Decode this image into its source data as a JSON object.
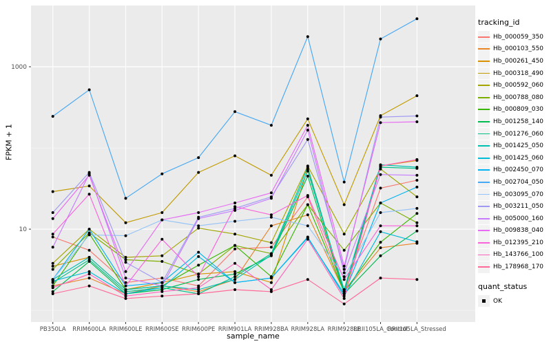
{
  "figure": {
    "background": "#FFFFFF",
    "panel_bg": "#EBEBEB",
    "grid_major_color": "#FFFFFF",
    "grid_minor_color": "#FFFFFF",
    "axis_text_color": "#4D4D4D",
    "axis_title_color": "#000000",
    "tick_mark_color": "#333333",
    "point_color": "#000000"
  },
  "chart_data": {
    "type": "line",
    "title": "",
    "xlabel": "sample_name",
    "ylabel": "FPKM + 1",
    "y_scale": "log10",
    "ylim_log": [
      -0.1432,
      3.7542
    ],
    "grid": true,
    "legend_position": "right",
    "legend_title": "tracking_id",
    "x_categories": [
      "PB350LA",
      "RRIM600LA",
      "RRIM600LE",
      "RRIM600SE",
      "RRIM600PE",
      "RRIM901LA",
      "RRIM928BA",
      "RRIM928LA",
      "RRIM928LE",
      "RRII105LA_Control",
      "RRII105LA_Stressed"
    ],
    "y_ticks": [
      {
        "label": "1000",
        "value": 1000
      },
      {
        "label": "10",
        "value": 10
      }
    ],
    "y_minor_gridlines": [
      100,
      1
    ],
    "series": [
      {
        "name": "Hb_000059_350",
        "color": "#F8766D",
        "values": [
          8.0,
          5.5,
          2.2,
          2.5,
          2.0,
          5.7,
          6.0,
          25,
          1.8,
          32,
          40
        ]
      },
      {
        "name": "Hb_000103_550",
        "color": "#E88526",
        "values": [
          2.0,
          2.5,
          1.6,
          2.0,
          1.7,
          2.4,
          11,
          15,
          1.7,
          5.9,
          6.7
        ]
      },
      {
        "name": "Hb_000261_450",
        "color": "#D89000",
        "values": [
          3.5,
          4.5,
          1.8,
          2.2,
          2.8,
          3.0,
          2.2,
          55,
          1.6,
          60,
          70
        ]
      },
      {
        "name": "Hb_000318_490",
        "color": "#C09B00",
        "values": [
          29,
          34,
          12,
          16,
          50,
          80,
          46,
          228,
          20,
          250,
          440
        ]
      },
      {
        "name": "Hb_000592_060",
        "color": "#A3A500",
        "values": [
          3.8,
          10,
          4.5,
          4.7,
          10.3,
          8.7,
          6.8,
          60,
          8.7,
          55,
          25
        ]
      },
      {
        "name": "Hb_000788_080",
        "color": "#7CAE00",
        "values": [
          3.2,
          9.0,
          4.2,
          4.0,
          2.8,
          6.3,
          5.0,
          20,
          5.5,
          21,
          12
        ]
      },
      {
        "name": "Hb_000809_030",
        "color": "#39B600",
        "values": [
          2.0,
          8.8,
          1.8,
          2.0,
          3.6,
          6.3,
          2.6,
          20,
          1.7,
          6.9,
          15.6
        ]
      },
      {
        "name": "Hb_001258_140",
        "color": "#00BB4E",
        "values": [
          1.7,
          4.0,
          1.6,
          1.8,
          2.4,
          2.8,
          4.7,
          45,
          1.6,
          4.7,
          9.5
        ]
      },
      {
        "name": "Hb_001276_060",
        "color": "#00C087",
        "values": [
          2.2,
          4.2,
          1.7,
          1.9,
          1.6,
          2.6,
          5.0,
          58,
          1.7,
          58,
          56
        ]
      },
      {
        "name": "Hb_001425_050",
        "color": "#00C0B2",
        "values": [
          2.4,
          4.5,
          1.8,
          2.0,
          1.8,
          2.4,
          4.8,
          52,
          1.8,
          62,
          58
        ]
      },
      {
        "name": "Hb_001425_060",
        "color": "#00BCD8",
        "values": [
          2.3,
          3.0,
          1.6,
          1.9,
          4.6,
          2.2,
          2.5,
          8.0,
          1.5,
          9.3,
          7.0
        ]
      },
      {
        "name": "Hb_002450_070",
        "color": "#00B3F2",
        "values": [
          2.4,
          10,
          2.0,
          2.2,
          5.2,
          2.2,
          2.5,
          7.8,
          1.6,
          21,
          33
        ]
      },
      {
        "name": "Hb_002704_050",
        "color": "#47A8F3",
        "values": [
          245,
          520,
          24,
          48,
          76,
          280,
          190,
          2350,
          38,
          2200,
          3900
        ]
      },
      {
        "name": "Hb_003095_070",
        "color": "#93C3F7",
        "values": [
          2.4,
          8.5,
          8.3,
          13,
          11,
          12.5,
          14,
          11,
          2.6,
          16,
          18
        ]
      },
      {
        "name": "Hb_003211_050",
        "color": "#9F99F3",
        "values": [
          16,
          50,
          3.9,
          2.2,
          14,
          18,
          25,
          127,
          3.2,
          240,
          248
        ]
      },
      {
        "name": "Hb_005000_160",
        "color": "#C77CFF",
        "values": [
          6.0,
          48,
          2.5,
          2.0,
          13.5,
          17,
          24,
          166,
          2.9,
          47,
          46
        ]
      },
      {
        "name": "Hb_009838_040",
        "color": "#E76BF3",
        "values": [
          13.5,
          46,
          3.0,
          13,
          16,
          21,
          28,
          190,
          3.5,
          205,
          210
        ]
      },
      {
        "name": "Hb_012395_210",
        "color": "#FA62DB",
        "values": [
          8.7,
          27,
          2.0,
          7.5,
          2.6,
          19,
          15,
          26,
          2.4,
          11,
          11
        ]
      },
      {
        "name": "Hb_143766_100",
        "color": "#FF62BC",
        "values": [
          1.9,
          2.8,
          1.5,
          1.7,
          1.9,
          3.8,
          1.8,
          7.5,
          1.4,
          60,
          72
        ]
      },
      {
        "name": "Hb_178968_170",
        "color": "#FF6A98",
        "values": [
          1.6,
          2.0,
          1.4,
          1.5,
          1.6,
          1.8,
          1.7,
          2.4,
          1.2,
          2.5,
          2.4
        ]
      }
    ],
    "quant_legend": {
      "title": "quant_status",
      "items": [
        {
          "label": "OK"
        }
      ]
    }
  }
}
